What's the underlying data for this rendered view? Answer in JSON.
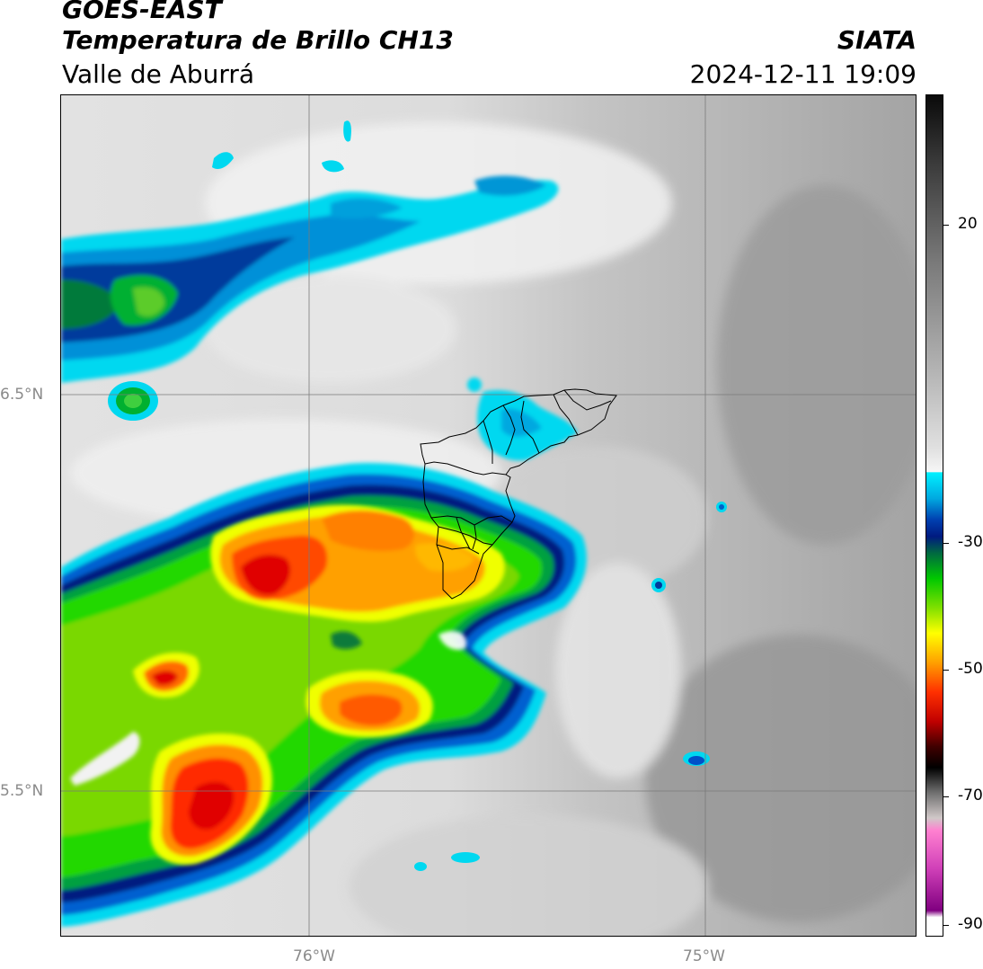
{
  "header": {
    "satellite": "GOES-EAST",
    "product": "Temperatura de Brillo CH13",
    "region": "Valle de Aburrá",
    "agency": "SIATA",
    "datetime": "2024-12-11 19:09"
  },
  "map": {
    "lat_labels": [
      "6.5°N",
      "5.5°N"
    ],
    "lon_labels": [
      "76°W",
      "75°W"
    ]
  },
  "colorbar": {
    "ticks": [
      "20",
      "-30",
      "-50",
      "-70",
      "-90"
    ],
    "colors": {
      "cyan": "#00e5ff",
      "blue": "#0050c8",
      "navy": "#001a80",
      "green": "#00c800",
      "yellow": "#ffff00",
      "orange": "#ff8c00",
      "red": "#e00000",
      "black": "#000000",
      "magenta": "#c030b0"
    }
  }
}
